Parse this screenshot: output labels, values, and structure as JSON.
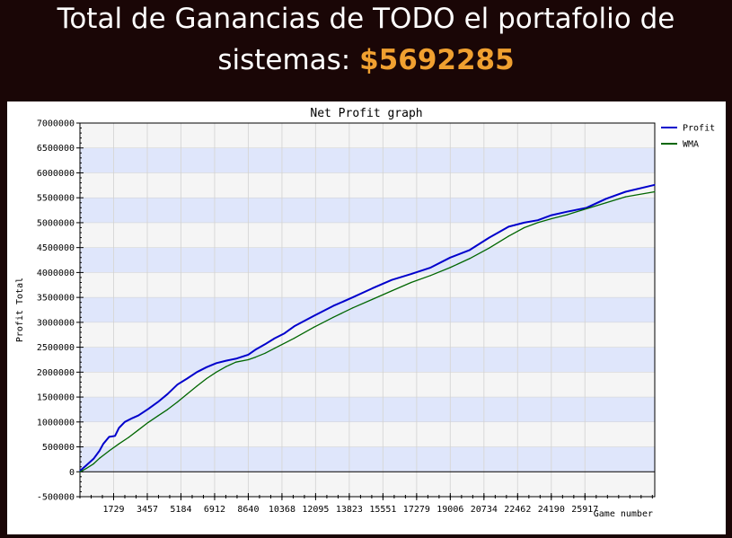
{
  "header": {
    "line1": "Total de Ganancias de TODO el portafolio de",
    "line2_prefix": "sistemas: ",
    "amount": "$5692285",
    "amount_color": "#f0a030"
  },
  "chart_data": {
    "type": "line",
    "title": "Net Profit graph",
    "xlabel": "Game number",
    "ylabel": "Profit Total",
    "xlim": [
      0,
      29500
    ],
    "ylim": [
      -500000,
      7000000
    ],
    "y_ticks": [
      -500000,
      0,
      500000,
      1000000,
      1500000,
      2000000,
      2500000,
      3000000,
      3500000,
      4000000,
      4500000,
      5000000,
      5500000,
      6000000,
      6500000,
      7000000
    ],
    "x_ticks": [
      1729,
      3457,
      5184,
      6912,
      8640,
      10368,
      12095,
      13823,
      15551,
      17279,
      19006,
      20734,
      22462,
      24190,
      25917
    ],
    "grid": true,
    "legend_position": "top-right",
    "series": [
      {
        "name": "Profit",
        "color": "#0000cc",
        "x": [
          0,
          300,
          700,
          1000,
          1200,
          1500,
          1800,
          2000,
          2300,
          2700,
          3000,
          3500,
          4000,
          4500,
          5000,
          5500,
          6000,
          6500,
          7000,
          7500,
          8000,
          8640,
          9000,
          9500,
          10000,
          10500,
          11000,
          12000,
          13000,
          14000,
          15000,
          16000,
          17000,
          18000,
          19000,
          20000,
          21000,
          22000,
          22800,
          23500,
          24200,
          25000,
          26000,
          27000,
          28000,
          29500
        ],
        "y": [
          20000,
          120000,
          260000,
          420000,
          560000,
          700000,
          720000,
          880000,
          1000000,
          1080000,
          1130000,
          1260000,
          1400000,
          1560000,
          1750000,
          1870000,
          2000000,
          2100000,
          2180000,
          2230000,
          2270000,
          2350000,
          2450000,
          2560000,
          2680000,
          2780000,
          2920000,
          3130000,
          3330000,
          3500000,
          3680000,
          3850000,
          3970000,
          4100000,
          4300000,
          4450000,
          4700000,
          4920000,
          5000000,
          5050000,
          5150000,
          5220000,
          5300000,
          5480000,
          5620000,
          5760000
        ]
      },
      {
        "name": "WMA",
        "color": "#006600",
        "x": [
          0,
          300,
          700,
          1000,
          1500,
          2000,
          2500,
          3000,
          3500,
          4000,
          4500,
          5000,
          5500,
          6000,
          6500,
          7000,
          7500,
          8000,
          8640,
          9000,
          9500,
          10000,
          11000,
          12000,
          13000,
          14000,
          15000,
          16000,
          17000,
          18000,
          19000,
          20000,
          21000,
          22000,
          22800,
          23500,
          24200,
          25000,
          26000,
          27000,
          28000,
          29500
        ],
        "y": [
          0,
          60000,
          160000,
          270000,
          420000,
          560000,
          690000,
          840000,
          990000,
          1120000,
          1250000,
          1400000,
          1560000,
          1720000,
          1870000,
          2000000,
          2110000,
          2200000,
          2250000,
          2300000,
          2380000,
          2480000,
          2680000,
          2900000,
          3100000,
          3290000,
          3460000,
          3630000,
          3800000,
          3940000,
          4100000,
          4280000,
          4490000,
          4730000,
          4900000,
          5000000,
          5080000,
          5160000,
          5280000,
          5400000,
          5520000,
          5620000
        ]
      }
    ]
  }
}
